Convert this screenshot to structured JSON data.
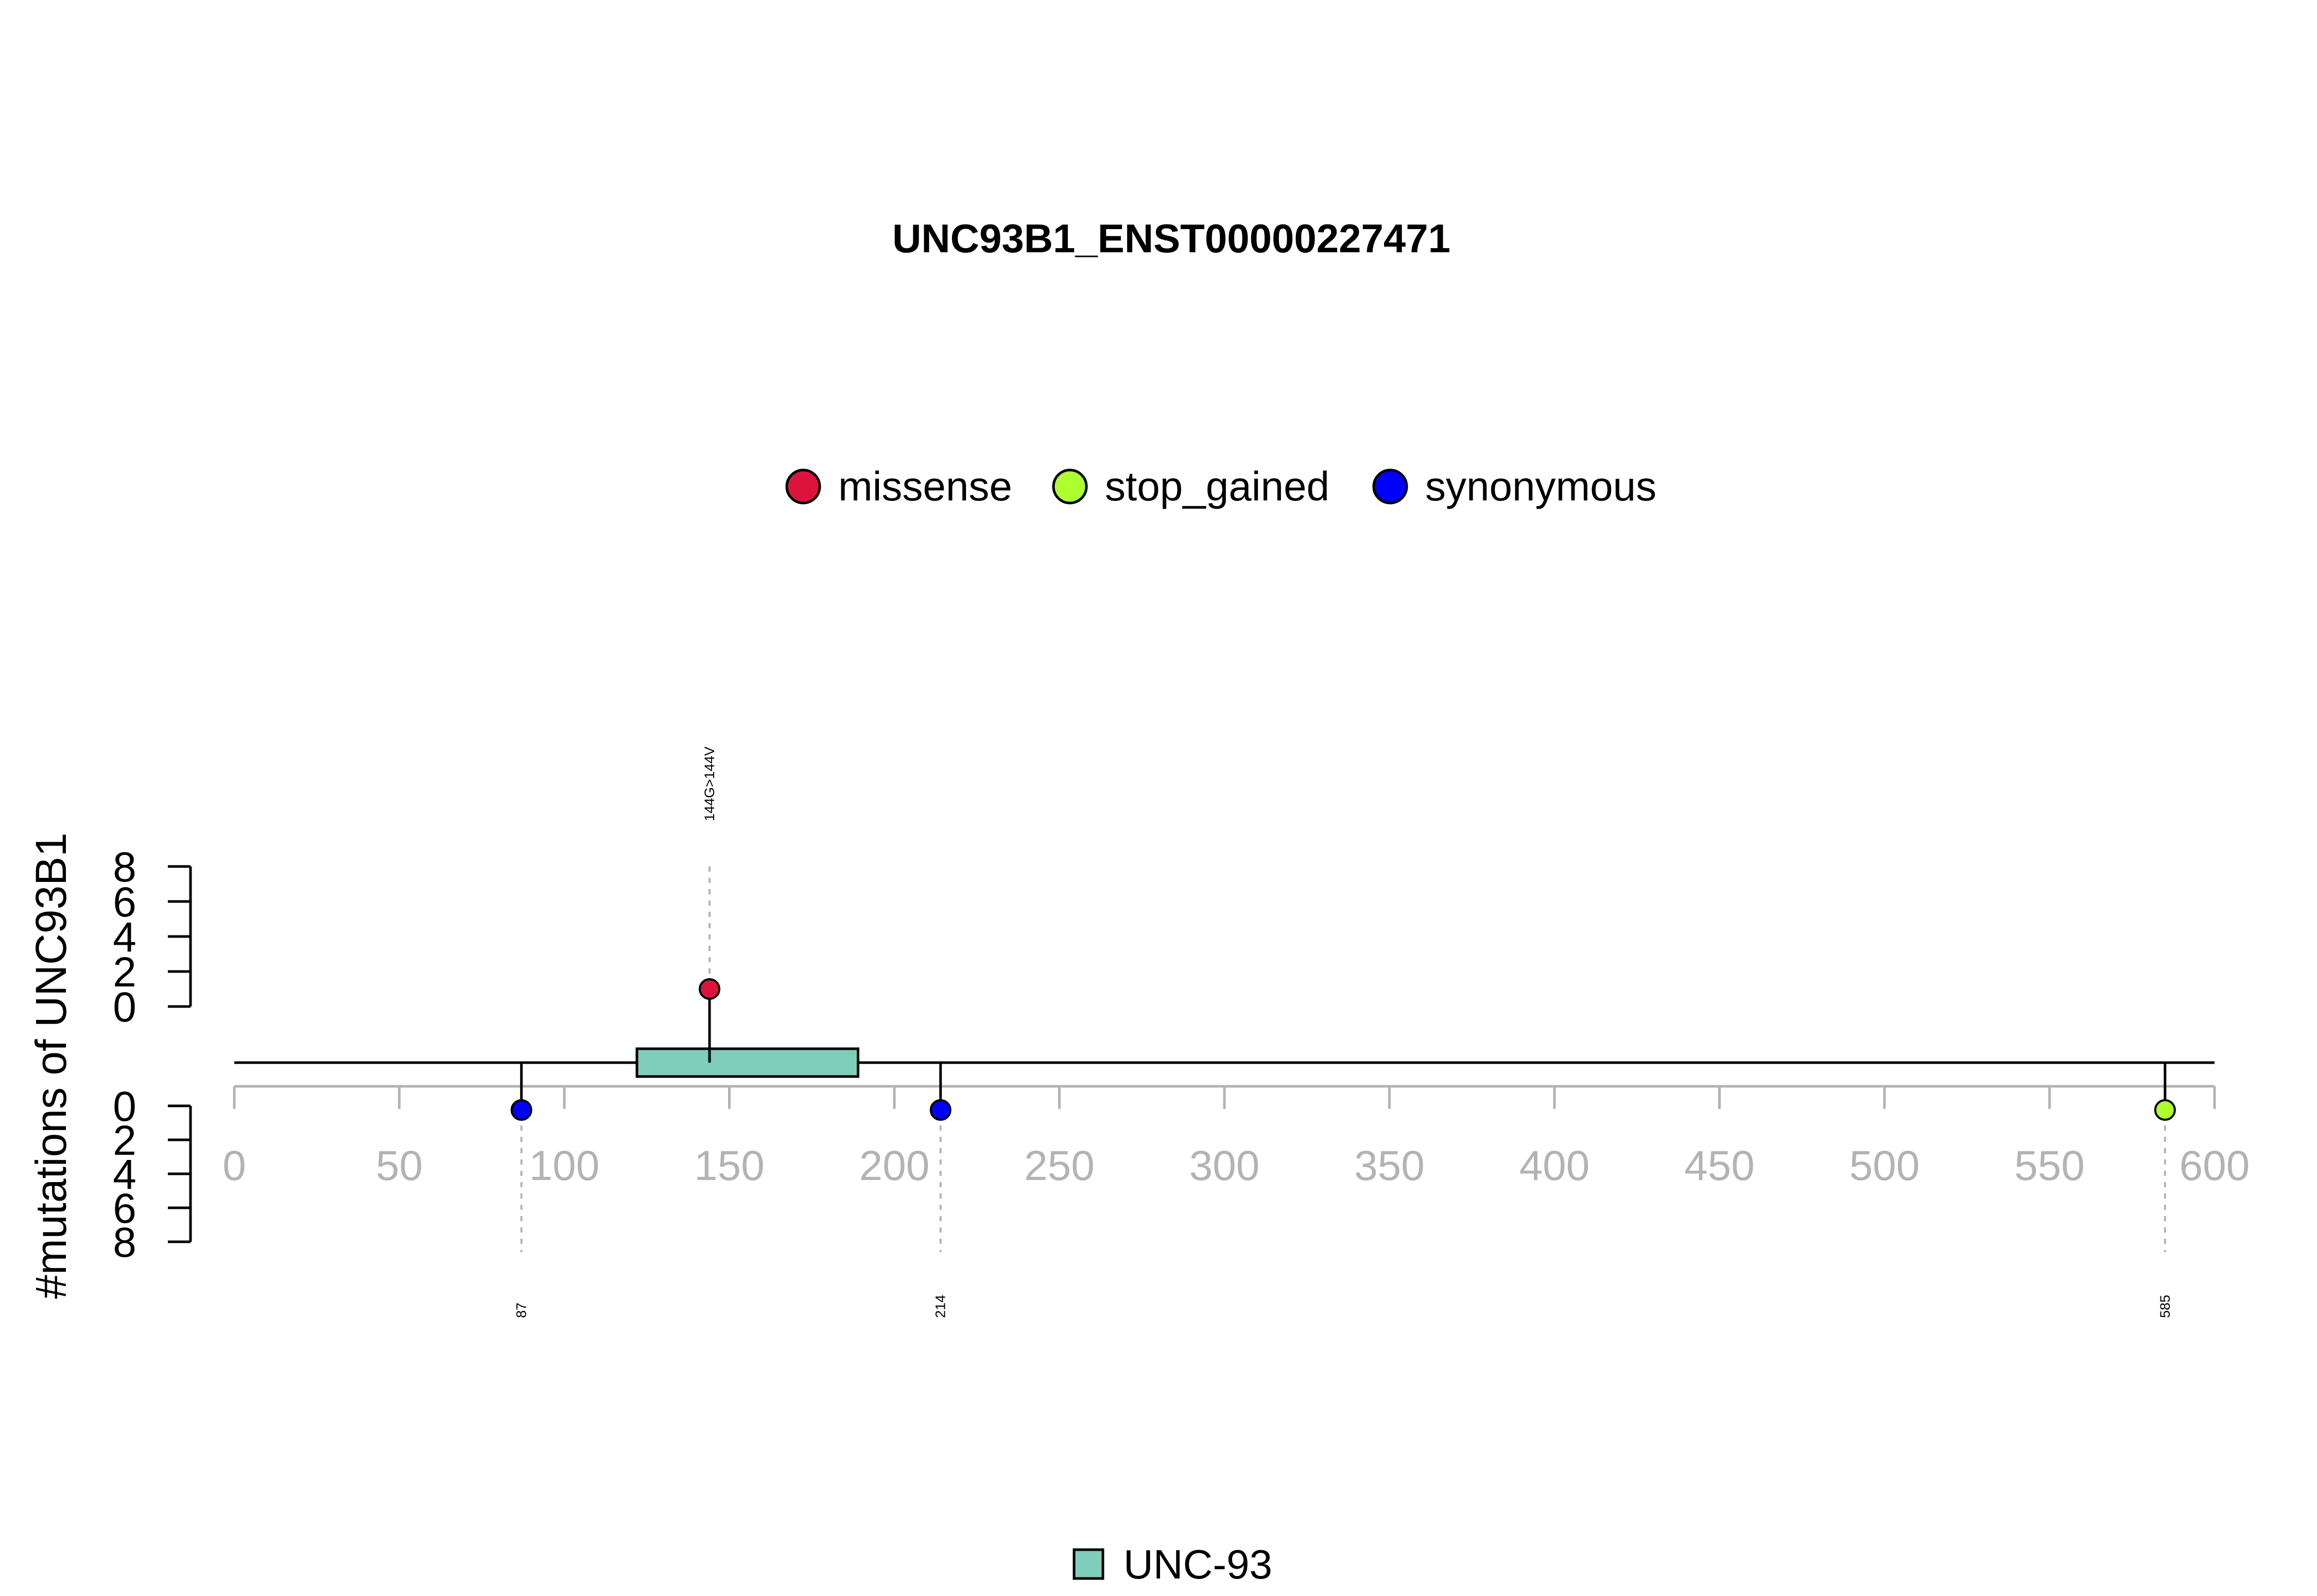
{
  "chart_data": {
    "type": "lollipop",
    "title": "UNC93B1_ENST00000227471",
    "ylabel": "#mutations of UNC93B1",
    "xlabel": "",
    "xlim": [
      0,
      600
    ],
    "x_ticks": [
      0,
      50,
      100,
      150,
      200,
      250,
      300,
      350,
      400,
      450,
      500,
      550,
      600
    ],
    "upper_y_ticks": [
      0,
      2,
      4,
      6,
      8
    ],
    "lower_y_ticks": [
      0,
      2,
      4,
      6,
      8
    ],
    "protein_length": 600,
    "mutation_legend": [
      {
        "name": "missense",
        "color": "#DC143C"
      },
      {
        "name": "stop_gained",
        "color": "#ADFF2F"
      },
      {
        "name": "synonymous",
        "color": "#0000FF"
      }
    ],
    "domains": [
      {
        "name": "UNC-93",
        "start": 122,
        "end": 189,
        "color": "#7FCDBB"
      }
    ],
    "mutations_upper": [
      {
        "position": 144,
        "count": 1,
        "type": "missense",
        "label": "144G>144V"
      }
    ],
    "mutations_lower": [
      {
        "position": 87,
        "count": 1,
        "type": "synonymous",
        "label": "87"
      },
      {
        "position": 214,
        "count": 1,
        "type": "synonymous",
        "label": "214"
      },
      {
        "position": 585,
        "count": 1,
        "type": "stop_gained",
        "label": "585"
      }
    ]
  }
}
